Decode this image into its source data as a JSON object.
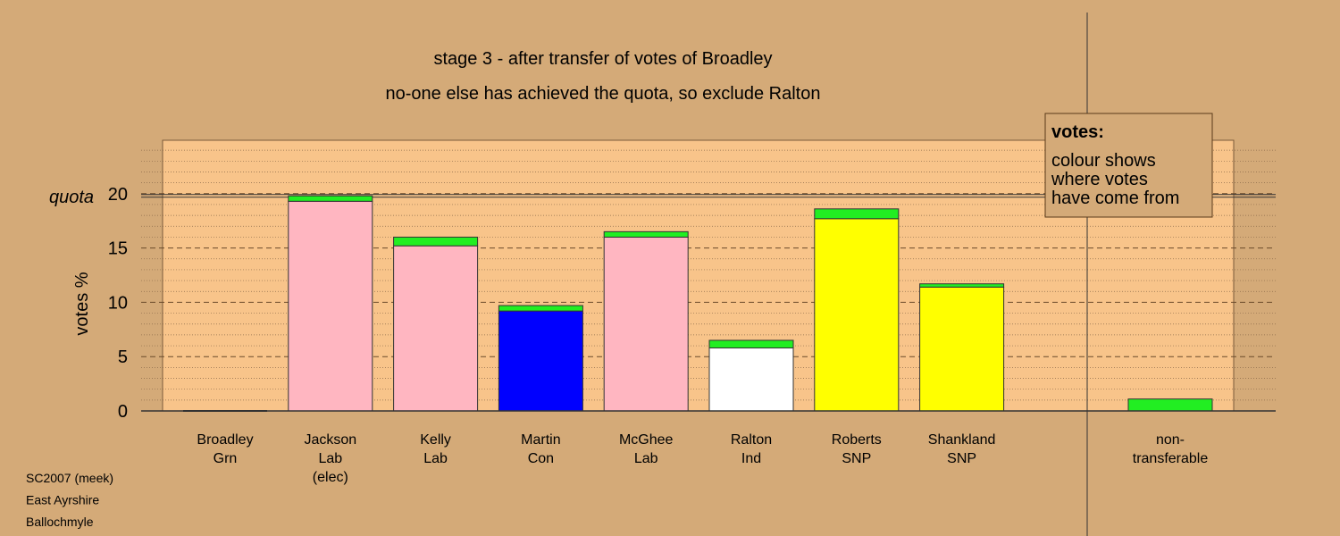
{
  "chart_data": {
    "type": "bar",
    "title_lines": [
      "stage 3 - after transfer of votes of Broadley",
      "no-one else has achieved the quota, so exclude Ralton"
    ],
    "ylabel": "votes %",
    "quota_label": "quota",
    "quota": 19.8,
    "ylim": [
      0,
      25
    ],
    "yticks": [
      0,
      5,
      10,
      15,
      20
    ],
    "grid": true,
    "candidates": [
      {
        "lines": [
          "Broadley",
          "Grn"
        ],
        "base": 0,
        "transfer": 0,
        "base_color": "#ffb6c1"
      },
      {
        "lines": [
          "Jackson",
          "Lab",
          "(elec)"
        ],
        "base": 19.3,
        "transfer": 0.5,
        "base_color": "#ffb6c1"
      },
      {
        "lines": [
          "Kelly",
          "Lab"
        ],
        "base": 15.2,
        "transfer": 0.8,
        "base_color": "#ffb6c1"
      },
      {
        "lines": [
          "Martin",
          "Con"
        ],
        "base": 9.2,
        "transfer": 0.5,
        "base_color": "#0000ff"
      },
      {
        "lines": [
          "McGhee",
          "Lab"
        ],
        "base": 16.0,
        "transfer": 0.5,
        "base_color": "#ffb6c1"
      },
      {
        "lines": [
          "Ralton",
          "Ind"
        ],
        "base": 5.8,
        "transfer": 0.7,
        "base_color": "#ffffff"
      },
      {
        "lines": [
          "Roberts",
          "SNP"
        ],
        "base": 17.7,
        "transfer": 0.9,
        "base_color": "#ffff00"
      },
      {
        "lines": [
          "Shankland",
          "SNP"
        ],
        "base": 11.4,
        "transfer": 0.3,
        "base_color": "#ffff00"
      }
    ],
    "non_transferable": {
      "lines": [
        "non-",
        "transferable"
      ],
      "value": 1.1
    },
    "transfer_color": "#22ee22",
    "legend": {
      "title": "votes:",
      "lines": [
        "colour shows",
        "where votes",
        "have come from"
      ],
      "position": "top-right"
    }
  },
  "credits": [
    "SC2007 (meek)",
    "East Ayrshire",
    "Ballochmyle"
  ],
  "colors": {
    "background": "#d4aa78",
    "plot_background": "#f8c48a",
    "legend_background": "#d4aa78"
  }
}
